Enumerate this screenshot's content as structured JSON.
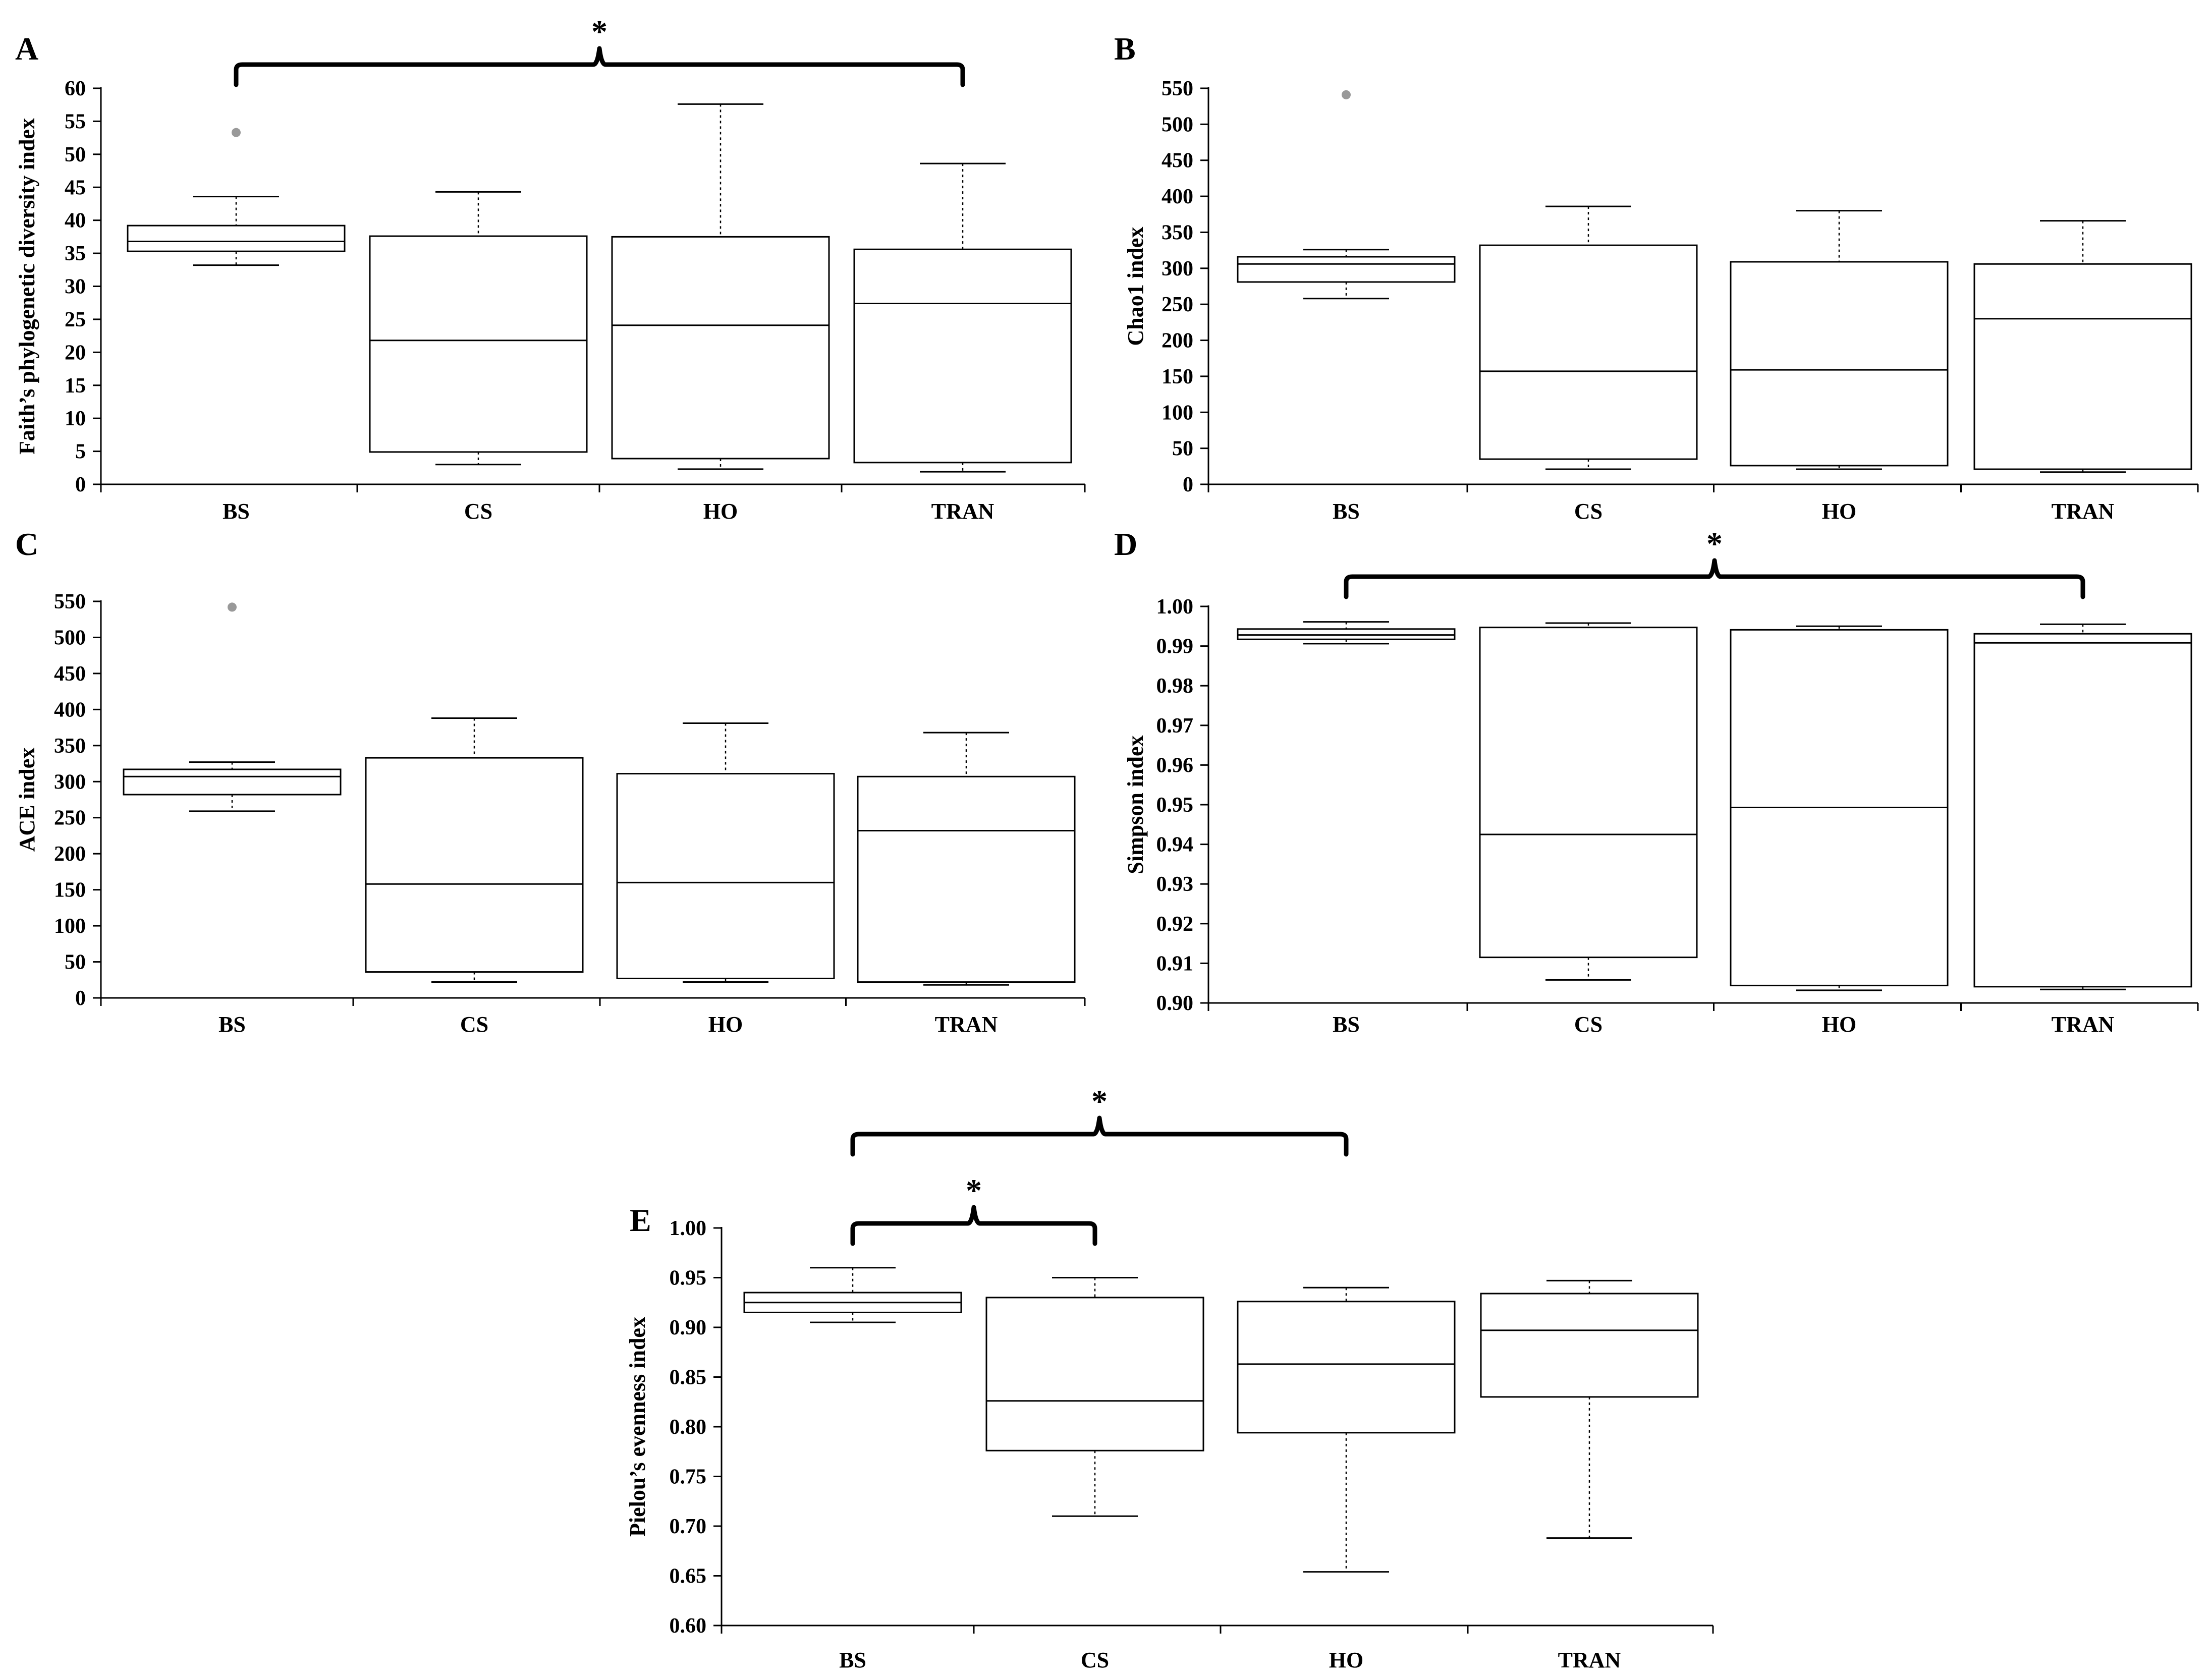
{
  "chart_data": [
    {
      "panel": "A",
      "type": "box",
      "ylabel": "Faith’s phylogenetic diversity index",
      "ylim": [
        0,
        60
      ],
      "yticks": [
        0,
        5,
        10,
        15,
        20,
        25,
        30,
        35,
        40,
        45,
        50,
        55,
        60
      ],
      "categories": [
        "BS",
        "CS",
        "HO",
        "TRAN"
      ],
      "boxes": [
        {
          "whisker_low": 33.2,
          "q1": 35.3,
          "median": 36.8,
          "q3": 39.2,
          "whisker_high": 43.6,
          "outliers": [
            53.3
          ]
        },
        {
          "whisker_low": 3.0,
          "q1": 4.9,
          "median": 21.8,
          "q3": 37.6,
          "whisker_high": 44.3,
          "outliers": []
        },
        {
          "whisker_low": 2.3,
          "q1": 3.9,
          "median": 24.1,
          "q3": 37.5,
          "whisker_high": 57.6,
          "outliers": []
        },
        {
          "whisker_low": 1.9,
          "q1": 3.3,
          "median": 27.4,
          "q3": 35.6,
          "whisker_high": 48.6,
          "outliers": []
        }
      ],
      "brackets": [
        {
          "from": "BS",
          "to": "TRAN",
          "label": "*"
        }
      ]
    },
    {
      "panel": "B",
      "type": "box",
      "ylabel": "Chao1 index",
      "ylim": [
        0,
        550
      ],
      "yticks": [
        0,
        50,
        100,
        150,
        200,
        250,
        300,
        350,
        400,
        450,
        500,
        550
      ],
      "categories": [
        "BS",
        "CS",
        "HO",
        "TRAN"
      ],
      "boxes": [
        {
          "whisker_low": 258,
          "q1": 281,
          "median": 306,
          "q3": 316,
          "whisker_high": 326,
          "outliers": [
            541
          ]
        },
        {
          "whisker_low": 21,
          "q1": 35,
          "median": 157,
          "q3": 332,
          "whisker_high": 386,
          "outliers": []
        },
        {
          "whisker_low": 21,
          "q1": 26,
          "median": 159,
          "q3": 309,
          "whisker_high": 380,
          "outliers": []
        },
        {
          "whisker_low": 17,
          "q1": 21,
          "median": 230,
          "q3": 306,
          "whisker_high": 366,
          "outliers": []
        }
      ],
      "brackets": []
    },
    {
      "panel": "C",
      "type": "box",
      "ylabel": "ACE index",
      "ylim": [
        0,
        550
      ],
      "yticks": [
        0,
        50,
        100,
        150,
        200,
        250,
        300,
        350,
        400,
        450,
        500,
        550
      ],
      "categories": [
        "BS",
        "CS",
        "HO",
        "TRAN"
      ],
      "boxes": [
        {
          "whisker_low": 259,
          "q1": 282,
          "median": 307,
          "q3": 317,
          "whisker_high": 327,
          "outliers": [
            542
          ]
        },
        {
          "whisker_low": 22,
          "q1": 36,
          "median": 158,
          "q3": 333,
          "whisker_high": 388,
          "outliers": []
        },
        {
          "whisker_low": 22,
          "q1": 27,
          "median": 160,
          "q3": 311,
          "whisker_high": 381,
          "outliers": []
        },
        {
          "whisker_low": 18,
          "q1": 22,
          "median": 232,
          "q3": 307,
          "whisker_high": 368,
          "outliers": []
        }
      ],
      "brackets": []
    },
    {
      "panel": "D",
      "type": "box",
      "ylabel": "Simpson index",
      "ylim": [
        0.9,
        1.0
      ],
      "yticks": [
        0.9,
        0.91,
        0.92,
        0.93,
        0.94,
        0.95,
        0.96,
        0.97,
        0.98,
        0.99,
        1.0
      ],
      "tick_decimals": 2,
      "categories": [
        "BS",
        "CS",
        "HO",
        "TRAN"
      ],
      "boxes": [
        {
          "whisker_low": 0.9906,
          "q1": 0.9917,
          "median": 0.9928,
          "q3": 0.9943,
          "whisker_high": 0.9961,
          "outliers": []
        },
        {
          "whisker_low": 0.9058,
          "q1": 0.9115,
          "median": 0.9425,
          "q3": 0.9947,
          "whisker_high": 0.9958,
          "outliers": []
        },
        {
          "whisker_low": 0.9032,
          "q1": 0.9044,
          "median": 0.9493,
          "q3": 0.9941,
          "whisker_high": 0.995,
          "outliers": []
        },
        {
          "whisker_low": 0.9034,
          "q1": 0.9041,
          "median": 0.9908,
          "q3": 0.9931,
          "whisker_high": 0.9955,
          "outliers": []
        }
      ],
      "brackets": [
        {
          "from": "BS",
          "to": "TRAN",
          "label": "*"
        }
      ]
    },
    {
      "panel": "E",
      "type": "box",
      "ylabel": "Pielou’s evenness index",
      "ylim": [
        0.6,
        1.0
      ],
      "yticks": [
        0.6,
        0.65,
        0.7,
        0.75,
        0.8,
        0.85,
        0.9,
        0.95,
        1.0
      ],
      "tick_decimals": 2,
      "categories": [
        "BS",
        "CS",
        "HO",
        "TRAN"
      ],
      "boxes": [
        {
          "whisker_low": 0.905,
          "q1": 0.915,
          "median": 0.925,
          "q3": 0.935,
          "whisker_high": 0.96,
          "outliers": []
        },
        {
          "whisker_low": 0.71,
          "q1": 0.776,
          "median": 0.826,
          "q3": 0.93,
          "whisker_high": 0.95,
          "outliers": []
        },
        {
          "whisker_low": 0.654,
          "q1": 0.794,
          "median": 0.863,
          "q3": 0.926,
          "whisker_high": 0.94,
          "outliers": []
        },
        {
          "whisker_low": 0.688,
          "q1": 0.83,
          "median": 0.897,
          "q3": 0.934,
          "whisker_high": 0.947,
          "outliers": []
        }
      ],
      "brackets": [
        {
          "from": "BS",
          "to": "CS",
          "label": "*"
        },
        {
          "from": "BS",
          "to": "HO",
          "label": "*"
        }
      ]
    }
  ],
  "colors": {
    "box": "#000000",
    "outlier": "#999999",
    "background": "#ffffff"
  }
}
